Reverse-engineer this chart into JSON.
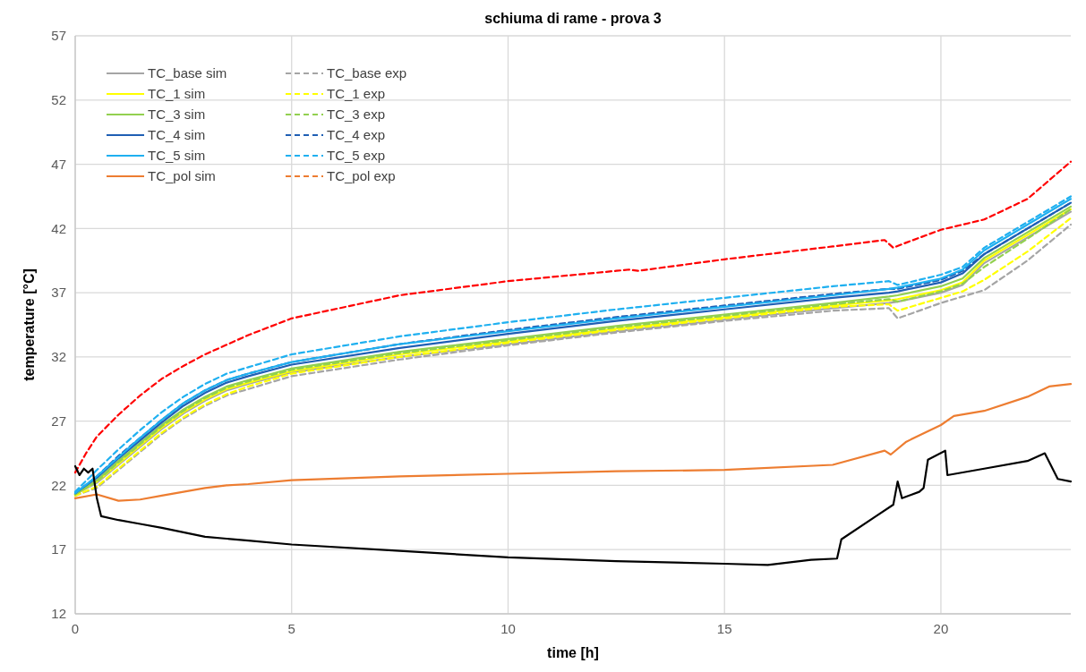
{
  "chart_data": {
    "type": "line",
    "title": "schiuma di rame - prova 3",
    "xlabel": "time [h]",
    "ylabel": "temperature [°C]",
    "x": [
      0,
      0.5,
      1,
      1.5,
      2,
      2.5,
      3,
      3.5,
      4,
      5,
      7.5,
      10,
      12.5,
      15,
      17.5,
      18.8,
      19,
      20,
      20.5,
      21,
      22,
      23
    ],
    "xlim": [
      0,
      23
    ],
    "xticks": [
      0,
      5,
      10,
      15,
      20
    ],
    "ylim": [
      12,
      57
    ],
    "yticks": [
      12,
      17,
      22,
      27,
      32,
      37,
      42,
      47,
      52,
      57
    ],
    "grid": true,
    "legend": "top left",
    "series": [
      {
        "name": "TC_base sim",
        "color": "#a5a5a5",
        "line_style": "solid",
        "values": [
          21.3,
          22.2,
          23.6,
          25.0,
          26.4,
          27.6,
          28.6,
          29.4,
          29.9,
          30.8,
          32.0,
          33.0,
          34.0,
          34.9,
          35.8,
          36.2,
          36.3,
          37.0,
          37.6,
          39.3,
          41.3,
          43.3
        ]
      },
      {
        "name": "TC_base exp",
        "color": "#a5a5a5",
        "line_style": "dashed",
        "values": [
          21.2,
          21.8,
          23.2,
          24.6,
          26.0,
          27.2,
          28.2,
          29.0,
          29.5,
          30.5,
          31.8,
          32.9,
          33.9,
          34.8,
          35.6,
          35.8,
          35.0,
          36.2,
          36.7,
          37.2,
          39.5,
          42.3
        ]
      },
      {
        "name": "TC_1 sim",
        "color": "#ffff00",
        "line_style": "solid",
        "values": [
          21.3,
          22.3,
          23.7,
          25.1,
          26.5,
          27.7,
          28.7,
          29.5,
          30.0,
          30.9,
          32.2,
          33.2,
          34.2,
          35.1,
          36.0,
          36.4,
          36.5,
          37.2,
          37.8,
          39.5,
          41.5,
          43.5
        ]
      },
      {
        "name": "TC_1 exp",
        "color": "#ffff00",
        "line_style": "dashed",
        "values": [
          21.2,
          21.9,
          23.3,
          24.7,
          26.1,
          27.3,
          28.3,
          29.1,
          29.7,
          30.7,
          32.0,
          33.1,
          34.1,
          35.0,
          35.9,
          36.1,
          35.6,
          36.6,
          37.1,
          38.0,
          40.2,
          42.8
        ]
      },
      {
        "name": "TC_3 sim",
        "color": "#92d050",
        "line_style": "solid",
        "values": [
          21.3,
          22.4,
          23.9,
          25.3,
          26.7,
          27.9,
          28.9,
          29.7,
          30.2,
          31.1,
          32.4,
          33.4,
          34.4,
          35.3,
          36.2,
          36.7,
          36.8,
          37.5,
          38.1,
          39.7,
          41.7,
          43.7
        ]
      },
      {
        "name": "TC_3 exp",
        "color": "#92d050",
        "line_style": "dashed",
        "values": [
          21.3,
          22.3,
          23.8,
          25.2,
          26.6,
          27.8,
          28.8,
          29.6,
          30.1,
          31.0,
          32.3,
          33.3,
          34.3,
          35.2,
          36.1,
          36.5,
          36.3,
          37.1,
          37.7,
          39.0,
          41.2,
          43.5
        ]
      },
      {
        "name": "TC_4 sim",
        "color": "#1f5fb4",
        "line_style": "solid",
        "values": [
          21.4,
          22.6,
          24.1,
          25.5,
          26.9,
          28.2,
          29.2,
          30.0,
          30.5,
          31.4,
          32.7,
          33.8,
          34.8,
          35.7,
          36.6,
          37.0,
          37.1,
          37.8,
          38.5,
          40.0,
          42.0,
          44.0
        ]
      },
      {
        "name": "TC_4 exp",
        "color": "#1f5fb4",
        "line_style": "dashed",
        "values": [
          21.4,
          22.7,
          24.3,
          25.7,
          27.1,
          28.4,
          29.4,
          30.2,
          30.7,
          31.6,
          33.0,
          34.1,
          35.1,
          36.0,
          36.9,
          37.3,
          37.3,
          38.0,
          38.7,
          40.0,
          42.0,
          44.0
        ]
      },
      {
        "name": "TC_5 sim",
        "color": "#1fb0f0",
        "line_style": "solid",
        "values": [
          21.4,
          22.7,
          24.2,
          25.7,
          27.1,
          28.4,
          29.4,
          30.2,
          30.7,
          31.6,
          33.0,
          34.0,
          35.0,
          35.9,
          36.8,
          37.3,
          37.4,
          38.1,
          38.8,
          40.3,
          42.3,
          44.3
        ]
      },
      {
        "name": "TC_5 exp",
        "color": "#1fb0f0",
        "line_style": "dashed",
        "values": [
          21.5,
          23.2,
          24.8,
          26.3,
          27.7,
          28.9,
          29.9,
          30.7,
          31.2,
          32.2,
          33.6,
          34.7,
          35.7,
          36.6,
          37.5,
          37.9,
          37.6,
          38.4,
          39.0,
          40.5,
          42.5,
          44.5
        ]
      },
      {
        "name": "TC_pol sim",
        "color": "#ed7d31",
        "line_style": "solid",
        "x": [
          0,
          0.5,
          1,
          1.5,
          2,
          2.5,
          3,
          3.5,
          4,
          5,
          7.5,
          10,
          12.5,
          15,
          17.5,
          18.7,
          18.84,
          19.2,
          20,
          20.3,
          21,
          22,
          22.5,
          23
        ],
        "values": [
          21.0,
          21.3,
          20.8,
          20.9,
          21.2,
          21.5,
          21.8,
          22.0,
          22.1,
          22.4,
          22.7,
          22.9,
          23.1,
          23.2,
          23.6,
          24.7,
          24.4,
          25.4,
          26.7,
          27.4,
          27.8,
          28.9,
          29.7,
          29.9
        ]
      },
      {
        "name": "TC_pol exp",
        "color": "#ed7d31",
        "line_style": "dashed",
        "values": [
          null,
          null,
          null,
          null,
          null,
          null,
          null,
          null,
          null,
          null,
          null,
          null,
          null,
          null,
          null,
          null,
          null,
          null,
          null,
          null,
          null,
          null
        ]
      },
      {
        "color": "#ff0000",
        "line_style": "dashed",
        "x": [
          0,
          0.25,
          0.5,
          1,
          1.5,
          2,
          2.5,
          3,
          4,
          5,
          7.5,
          10,
          12.5,
          12.8,
          13,
          15,
          17.5,
          18.7,
          18.9,
          19.2,
          20,
          21,
          22,
          23
        ],
        "values": [
          23.0,
          24.5,
          25.8,
          27.5,
          29.0,
          30.3,
          31.3,
          32.2,
          33.7,
          35.0,
          36.8,
          37.9,
          38.7,
          38.8,
          38.7,
          39.6,
          40.6,
          41.1,
          40.5,
          40.9,
          41.9,
          42.7,
          44.3,
          47.2
        ]
      },
      {
        "color": "#000000",
        "line_style": "solid",
        "x": [
          0,
          0.1,
          0.2,
          0.3,
          0.4,
          0.5,
          0.6,
          1,
          1.5,
          2,
          3,
          4,
          5,
          7.5,
          10,
          12.5,
          15,
          16,
          17,
          17.6,
          17.7,
          18.5,
          18.9,
          19,
          19.1,
          19.5,
          19.6,
          19.7,
          20.1,
          20.15,
          21,
          22,
          22.4,
          22.7,
          23
        ],
        "values": [
          23.5,
          22.8,
          23.3,
          23.0,
          23.3,
          21.0,
          19.6,
          19.3,
          19.0,
          18.7,
          18.0,
          17.7,
          17.4,
          16.9,
          16.4,
          16.1,
          15.9,
          15.8,
          16.2,
          16.3,
          17.8,
          19.6,
          20.5,
          22.3,
          21.0,
          21.5,
          21.8,
          24.0,
          24.7,
          22.8,
          23.3,
          23.9,
          24.5,
          22.5,
          22.3
        ]
      }
    ]
  }
}
